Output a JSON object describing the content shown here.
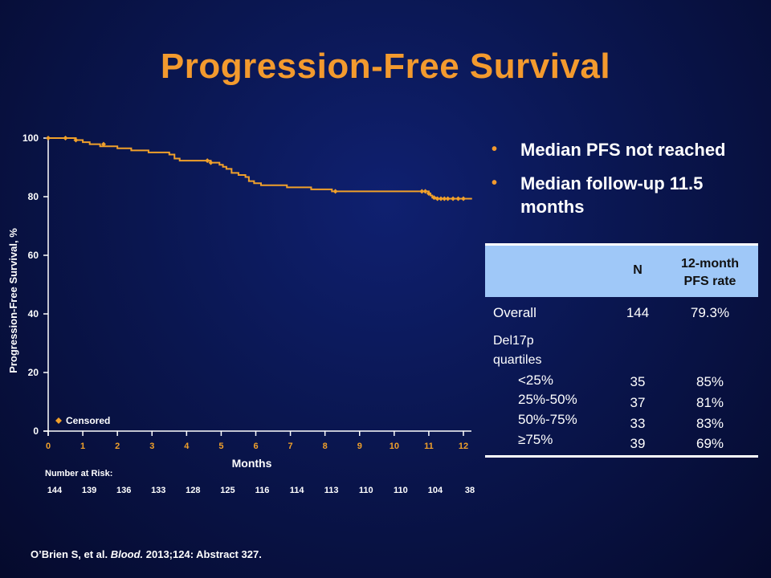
{
  "slide": {
    "title": "Progression-Free Survival",
    "citation": {
      "prefix": "O’Brien S, et al. ",
      "journal": "Blood.",
      "suffix": " 2013;124: Abstract  327."
    }
  },
  "bullets": [
    "Median PFS not reached",
    "Median follow-up 11.5 months"
  ],
  "table": {
    "headers": [
      "",
      "N",
      "12-month PFS rate"
    ],
    "header_rate_lines": [
      "12-month",
      "PFS rate"
    ],
    "overall": {
      "label": "Overall",
      "n": "144",
      "rate": "79.3%"
    },
    "group_label_lines": [
      "Del17p",
      "quartiles"
    ],
    "rows": [
      {
        "label": "<25%",
        "n": "35",
        "rate": "85%"
      },
      {
        "label": "25%-50%",
        "n": "37",
        "rate": "81%"
      },
      {
        "label": "50%-75%",
        "n": "33",
        "rate": "83%"
      },
      {
        "label": "≥75%",
        "n": "39",
        "rate": "69%"
      }
    ]
  },
  "chart_data": {
    "type": "line",
    "ylabel": "Progression-Free Survival, %",
    "xlabel": "Months",
    "ylim": [
      0,
      100
    ],
    "xlim": [
      0,
      12
    ],
    "y_ticks": [
      0,
      20,
      40,
      60,
      80,
      100
    ],
    "x_ticks": [
      0,
      1,
      2,
      3,
      4,
      5,
      6,
      7,
      8,
      9,
      10,
      11,
      12
    ],
    "legend": {
      "label": "Censored",
      "placement": "bottom-left"
    },
    "colors": {
      "curve": "#f0a02a",
      "censor": "#f0a02a",
      "axes": "#ffffff"
    },
    "at_risk": {
      "label": "Number at Risk:",
      "times": [
        0,
        1,
        2,
        3,
        4,
        5,
        6,
        7,
        8,
        9,
        10,
        11,
        12
      ],
      "values": [
        144,
        139,
        136,
        133,
        128,
        125,
        116,
        114,
        113,
        110,
        110,
        104,
        38
      ]
    },
    "series": [
      {
        "steps": [
          [
            0,
            100
          ],
          [
            0.8,
            99.3
          ],
          [
            1.0,
            98.6
          ],
          [
            1.2,
            97.9
          ],
          [
            1.5,
            97.2
          ],
          [
            2.0,
            96.5
          ],
          [
            2.4,
            95.8
          ],
          [
            2.9,
            95.1
          ],
          [
            3.5,
            94.4
          ],
          [
            3.65,
            93.0
          ],
          [
            3.8,
            92.3
          ],
          [
            4.7,
            91.6
          ],
          [
            4.95,
            90.9
          ],
          [
            5.05,
            90.2
          ],
          [
            5.15,
            89.5
          ],
          [
            5.3,
            88.1
          ],
          [
            5.5,
            87.4
          ],
          [
            5.7,
            86.7
          ],
          [
            5.8,
            85.3
          ],
          [
            5.95,
            84.6
          ],
          [
            6.15,
            83.9
          ],
          [
            6.9,
            83.2
          ],
          [
            7.6,
            82.5
          ],
          [
            8.2,
            81.8
          ],
          [
            11.0,
            81.1
          ],
          [
            11.05,
            80.4
          ],
          [
            11.1,
            79.7
          ],
          [
            11.2,
            79.3
          ],
          [
            12.25,
            79.3
          ]
        ],
        "censored": [
          [
            0.0,
            100
          ],
          [
            0.5,
            100
          ],
          [
            0.8,
            99.3
          ],
          [
            1.6,
            97.9
          ],
          [
            4.6,
            92.3
          ],
          [
            4.7,
            91.6
          ],
          [
            8.3,
            81.8
          ],
          [
            10.8,
            81.8
          ],
          [
            10.9,
            81.8
          ],
          [
            11.0,
            81.1
          ],
          [
            11.15,
            79.7
          ],
          [
            11.25,
            79.3
          ],
          [
            11.35,
            79.3
          ],
          [
            11.45,
            79.3
          ],
          [
            11.55,
            79.3
          ],
          [
            11.7,
            79.3
          ],
          [
            11.85,
            79.3
          ],
          [
            12.0,
            79.3
          ]
        ]
      }
    ]
  }
}
